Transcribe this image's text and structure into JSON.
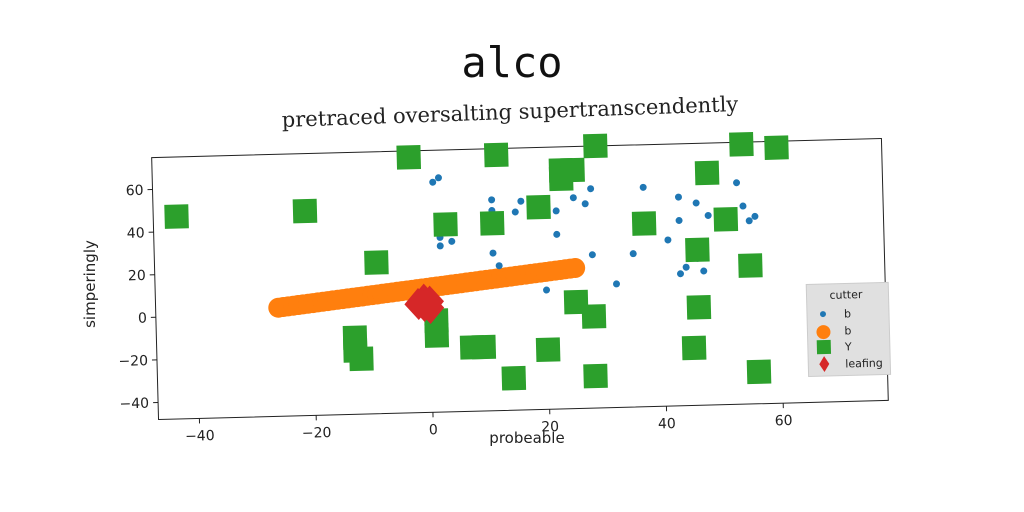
{
  "chart_data": {
    "type": "scatter",
    "title": "alco",
    "subtitle": "pretraced oversalting supertranscendently",
    "xlabel": "probeable",
    "ylabel": "simperingly",
    "xlim": [
      -47,
      78
    ],
    "ylim": [
      -48,
      75
    ],
    "xticks": [
      -40,
      -20,
      0,
      20,
      40,
      60
    ],
    "yticks": [
      -40,
      -20,
      0,
      20,
      40,
      60
    ],
    "grid": false,
    "legend": {
      "title": "cutter",
      "placement": "lower-right"
    },
    "colors": {
      "blue": "#1f77b4",
      "orange": "#ff7f0e",
      "green": "#2ca02c",
      "red": "#d62728"
    },
    "series": [
      {
        "name": "b",
        "marker": "circle-small",
        "color": "#1f77b4",
        "points": [
          [
            1,
            60
          ],
          [
            2,
            62
          ],
          [
            11,
            51
          ],
          [
            16,
            50
          ],
          [
            25,
            51
          ],
          [
            28,
            55
          ],
          [
            37,
            55
          ],
          [
            43,
            50
          ],
          [
            46,
            47
          ],
          [
            53,
            56
          ],
          [
            11,
            46
          ],
          [
            15,
            45
          ],
          [
            22,
            45
          ],
          [
            27,
            48
          ],
          [
            43,
            39
          ],
          [
            48,
            41
          ],
          [
            54,
            45
          ],
          [
            56,
            40
          ],
          [
            55,
            38
          ],
          [
            2,
            34
          ],
          [
            4,
            32
          ],
          [
            2,
            30
          ],
          [
            11,
            26
          ],
          [
            22,
            34
          ],
          [
            41,
            30
          ],
          [
            12,
            20
          ],
          [
            28,
            24
          ],
          [
            35,
            24
          ],
          [
            46,
            21
          ],
          [
            44,
            17
          ],
          [
            43,
            14
          ],
          [
            47,
            15
          ],
          [
            32,
            10
          ],
          [
            20,
            8
          ]
        ]
      },
      {
        "name": "b",
        "marker": "circle-large",
        "color": "#ff7f0e",
        "line": [
          [
            -26,
            3
          ],
          [
            25,
            18
          ]
        ]
      },
      {
        "name": "Y",
        "marker": "square",
        "color": "#2ca02c",
        "points": [
          [
            -3,
            72
          ],
          [
            12,
            72
          ],
          [
            29,
            75
          ],
          [
            54,
            74
          ],
          [
            60,
            72
          ],
          [
            23,
            64
          ],
          [
            25,
            64
          ],
          [
            23,
            60
          ],
          [
            48,
            61
          ],
          [
            -43,
            47
          ],
          [
            -21,
            48
          ],
          [
            19,
            47
          ],
          [
            3,
            40
          ],
          [
            11,
            40
          ],
          [
            37,
            38
          ],
          [
            51,
            39
          ],
          [
            -9,
            23
          ],
          [
            46,
            25
          ],
          [
            55,
            17
          ],
          [
            25,
            2
          ],
          [
            28,
            -5
          ],
          [
            46,
            -2
          ],
          [
            1,
            -5
          ],
          [
            1,
            -12
          ],
          [
            -13,
            -12
          ],
          [
            -13,
            -18
          ],
          [
            -12,
            -22
          ],
          [
            7,
            -18
          ],
          [
            9,
            -18
          ],
          [
            20,
            -20
          ],
          [
            45,
            -21
          ],
          [
            14,
            -33
          ],
          [
            28,
            -33
          ],
          [
            56,
            -33
          ],
          [
            68,
            -3
          ],
          [
            69,
            -19
          ]
        ]
      },
      {
        "name": "leafing",
        "marker": "diamond",
        "color": "#d62728",
        "points": [
          [
            -1,
            5
          ],
          [
            -1,
            2
          ],
          [
            0,
            4
          ],
          [
            -2,
            3
          ],
          [
            0,
            1
          ]
        ]
      }
    ]
  }
}
